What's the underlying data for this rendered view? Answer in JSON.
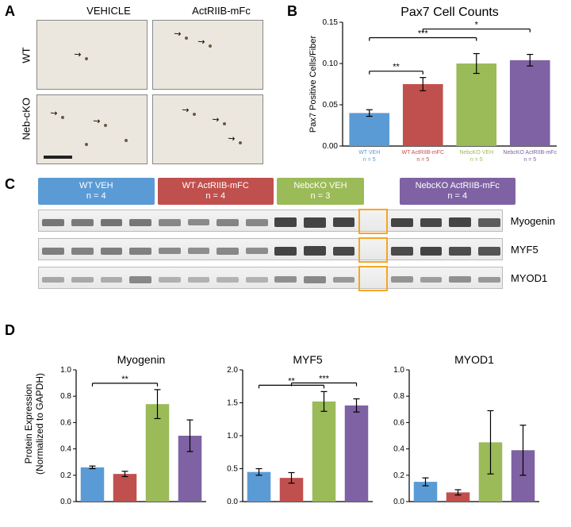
{
  "colors": {
    "wt_veh": "#5b9bd5",
    "wt_act": "#c0504d",
    "ko_veh": "#9bbb59",
    "ko_act": "#7f62a3",
    "axis": "#000000",
    "sig_bar": "#000000",
    "blot_band": "#3a3a3a",
    "empty_lane_border": "#f5a623"
  },
  "panelA": {
    "label": "A",
    "col1": "VEHICLE",
    "col2": "ActRIIB-mFc",
    "row1": "WT",
    "row2": "Neb-cKO"
  },
  "panelB": {
    "label": "B",
    "title": "Pax7 Cell Counts",
    "ylabel": "Pax7 Positive Cells/Fiber",
    "ylim": [
      0,
      0.15
    ],
    "yticks": [
      0,
      0.05,
      0.1,
      0.15
    ],
    "bars": [
      {
        "key": "wt_veh",
        "label1": "WT VEH",
        "label2": "n = 5",
        "value": 0.04,
        "err": 0.004
      },
      {
        "key": "wt_act",
        "label1": "WT ActRIIB-mFC",
        "label2": "n = 5",
        "value": 0.075,
        "err": 0.008
      },
      {
        "key": "ko_veh",
        "label1": "NebcKO VEH",
        "label2": "n = 5",
        "value": 0.1,
        "err": 0.012
      },
      {
        "key": "ko_act",
        "label1": "NebcKO ActRIIB-mFc",
        "label2": "n = 5",
        "value": 0.104,
        "err": 0.007
      }
    ],
    "sig": [
      {
        "from": 0,
        "to": 1,
        "label": "**",
        "level": 1
      },
      {
        "from": 0,
        "to": 2,
        "label": "***",
        "level": 2
      },
      {
        "from": 1,
        "to": 3,
        "label": "*",
        "level": 3
      }
    ]
  },
  "panelC": {
    "label": "C",
    "groups": [
      {
        "key": "wt_veh",
        "label1": "WT VEH",
        "label2": "n = 4",
        "lanes": 4
      },
      {
        "key": "wt_act",
        "label1": "WT ActRIIB-mFC",
        "label2": "n = 4",
        "lanes": 4
      },
      {
        "key": "ko_veh",
        "label1": "NebcKO VEH",
        "label2": "n = 3",
        "lanes": 3
      },
      {
        "key": "ko_act",
        "label1": "NebcKO ActRIIB-mFc",
        "label2": "n = 4",
        "lanes": 4
      }
    ],
    "empty_lane_after_group": 2,
    "blots": [
      {
        "name": "Myogenin",
        "intensity": [
          0.4,
          0.38,
          0.42,
          0.4,
          0.3,
          0.28,
          0.32,
          0.3,
          0.75,
          0.8,
          0.78,
          0.7,
          0.68,
          0.72,
          0.55
        ]
      },
      {
        "name": "MYF5",
        "intensity": [
          0.35,
          0.33,
          0.36,
          0.34,
          0.28,
          0.26,
          0.3,
          0.27,
          0.7,
          0.72,
          0.68,
          0.66,
          0.7,
          0.65,
          0.6
        ]
      },
      {
        "name": "MYOD1",
        "intensity": [
          0.12,
          0.1,
          0.08,
          0.3,
          0.06,
          0.05,
          0.04,
          0.05,
          0.25,
          0.3,
          0.2,
          0.22,
          0.18,
          0.25,
          0.2
        ]
      }
    ]
  },
  "panelD": {
    "label": "D",
    "ylabel1": "Protein Expression",
    "ylabel2": "(Normalized to GAPDH)",
    "charts": [
      {
        "title": "Myogenin",
        "ylim": [
          0,
          1.0
        ],
        "yticks": [
          0,
          0.2,
          0.4,
          0.6,
          0.8,
          1.0
        ],
        "bars": [
          {
            "key": "wt_veh",
            "value": 0.26,
            "err": 0.01
          },
          {
            "key": "wt_act",
            "value": 0.21,
            "err": 0.02
          },
          {
            "key": "ko_veh",
            "value": 0.74,
            "err": 0.11
          },
          {
            "key": "ko_act",
            "value": 0.5,
            "err": 0.12
          }
        ],
        "sig": [
          {
            "from": 0,
            "to": 2,
            "label": "**",
            "level": 1
          }
        ]
      },
      {
        "title": "MYF5",
        "ylim": [
          0,
          2.0
        ],
        "yticks": [
          0,
          0.5,
          1.0,
          1.5,
          2.0
        ],
        "bars": [
          {
            "key": "wt_veh",
            "value": 0.45,
            "err": 0.05
          },
          {
            "key": "wt_act",
            "value": 0.36,
            "err": 0.08
          },
          {
            "key": "ko_veh",
            "value": 1.52,
            "err": 0.15
          },
          {
            "key": "ko_act",
            "value": 1.46,
            "err": 0.1
          }
        ],
        "sig": [
          {
            "from": 0,
            "to": 2,
            "label": "**",
            "level": 1
          },
          {
            "from": 1,
            "to": 3,
            "label": "***",
            "level": 2
          }
        ]
      },
      {
        "title": "MYOD1",
        "ylim": [
          0,
          1.0
        ],
        "yticks": [
          0,
          0.2,
          0.4,
          0.6,
          0.8,
          1.0
        ],
        "bars": [
          {
            "key": "wt_veh",
            "value": 0.15,
            "err": 0.03
          },
          {
            "key": "wt_act",
            "value": 0.07,
            "err": 0.02
          },
          {
            "key": "ko_veh",
            "value": 0.45,
            "err": 0.24
          },
          {
            "key": "ko_act",
            "value": 0.39,
            "err": 0.19
          }
        ],
        "sig": []
      }
    ]
  }
}
